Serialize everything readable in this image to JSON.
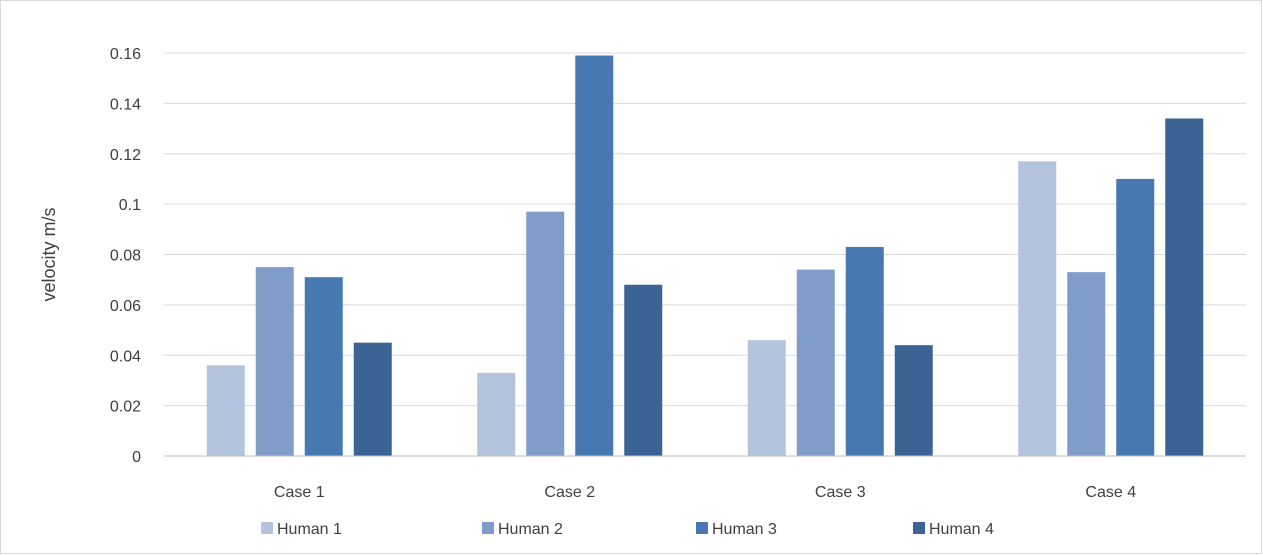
{
  "chart_data": {
    "type": "bar",
    "title": "",
    "xlabel": "",
    "ylabel": "velocity m/s",
    "ylim": [
      0,
      0.16
    ],
    "yticks": [
      0,
      0.02,
      0.04,
      0.06,
      0.08,
      0.1,
      0.12,
      0.14,
      0.16
    ],
    "ytick_labels": [
      "0",
      "0.02",
      "0.04",
      "0.06",
      "0.08",
      "0.1",
      "0.12",
      "0.14",
      "0.16"
    ],
    "grid": true,
    "legend_position": "bottom",
    "categories": [
      "Case 1",
      "Case 2",
      "Case 3",
      "Case 4"
    ],
    "series": [
      {
        "name": "Human 1",
        "color": "#b4c3de",
        "values": [
          0.036,
          0.033,
          0.046,
          0.117
        ]
      },
      {
        "name": "Human 2",
        "color": "#7f9dc8",
        "values": [
          0.075,
          0.097,
          0.074,
          0.073
        ]
      },
      {
        "name": "Human 3",
        "color": "#4878b2",
        "values": [
          0.071,
          0.159,
          0.083,
          0.11
        ]
      },
      {
        "name": "Human 4",
        "color": "#3b6393",
        "values": [
          0.045,
          0.068,
          0.044,
          0.134
        ]
      }
    ]
  }
}
